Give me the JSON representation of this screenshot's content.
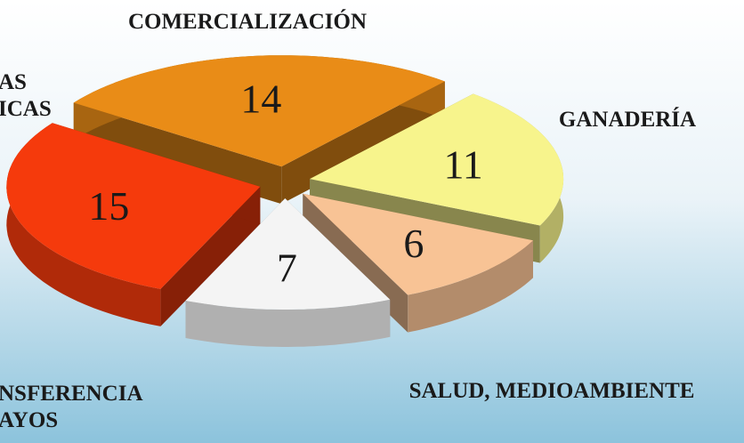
{
  "chart_data": {
    "type": "pie",
    "categories": [
      "COMERCIALIZACIÓN",
      "GANADERÍA",
      "SALUD, MEDIOAMBIENTE",
      "NSFERENCIA\nAYOS",
      "AS\nICAS"
    ],
    "values": [
      14,
      11,
      6,
      7,
      15
    ],
    "colors": [
      "#e98c17",
      "#f7f48c",
      "#f8c395",
      "#f4f4f4",
      "#f53a0c"
    ]
  }
}
